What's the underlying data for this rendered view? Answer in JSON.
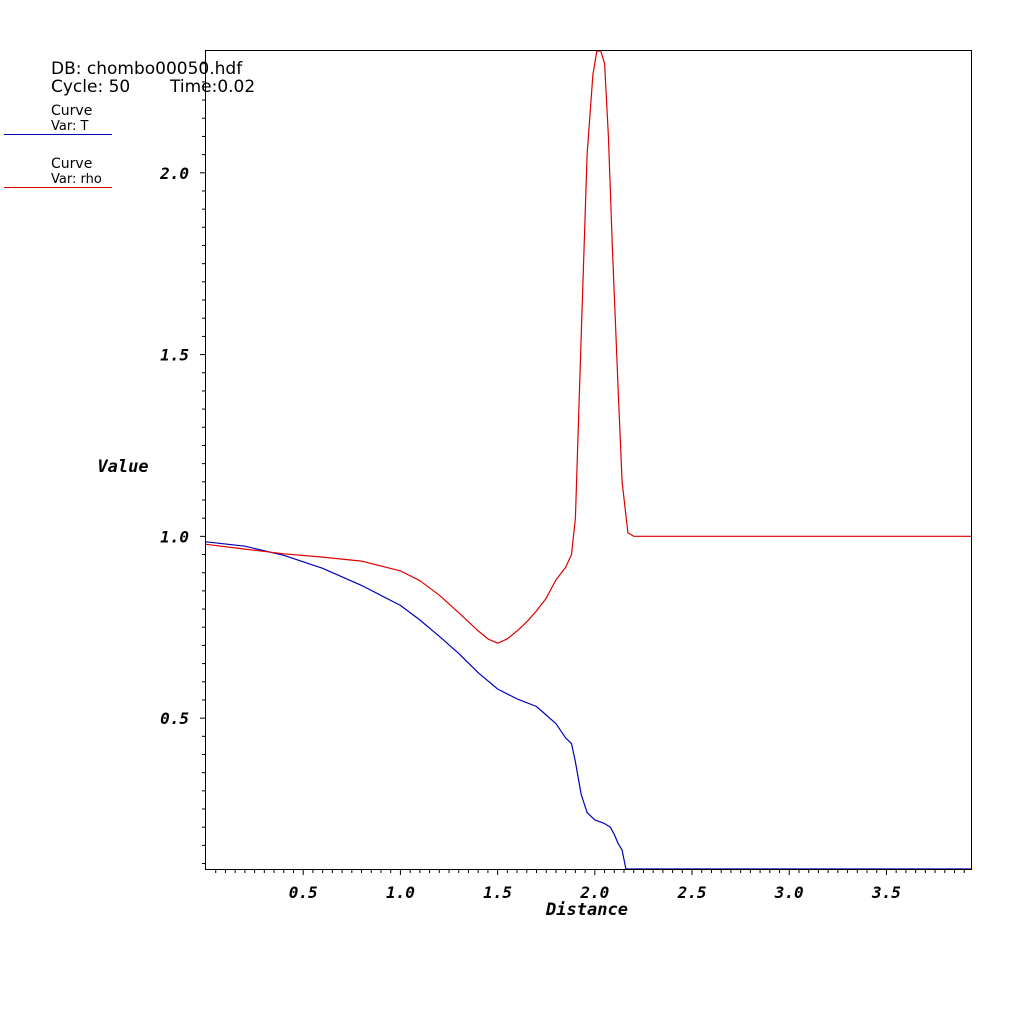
{
  "info": {
    "db": "DB: chombo00050.hdf",
    "cycle": "Cycle: 50",
    "time": "Time:0.02"
  },
  "legend": [
    {
      "name": "Curve",
      "var": "Var: T",
      "color": "#0000bb"
    },
    {
      "name": "Curve",
      "var": "Var: rho",
      "color": "#dd0000"
    }
  ],
  "chart_data": {
    "type": "line",
    "title": "",
    "xlabel": "Distance",
    "ylabel": "Value",
    "xlim": [
      0,
      3.94
    ],
    "ylim": [
      0.085,
      2.335
    ],
    "x_ticks": [
      "0.5",
      "1.0",
      "1.5",
      "2.0",
      "2.5",
      "3.0",
      "3.5"
    ],
    "y_ticks": [
      "0.5",
      "1.0",
      "1.5",
      "2.0"
    ],
    "grid": false,
    "legend_position": "top-left",
    "series": [
      {
        "name": "T",
        "color": "#0000bb",
        "x": [
          0,
          0.2,
          0.4,
          0.6,
          0.8,
          1.0,
          1.1,
          1.2,
          1.3,
          1.4,
          1.5,
          1.6,
          1.7,
          1.8,
          1.85,
          1.88,
          1.9,
          1.93,
          1.96,
          2.0,
          2.05,
          2.08,
          2.1,
          2.12,
          2.14,
          2.16,
          2.2,
          2.5,
          3.0,
          3.5,
          3.94
        ],
        "y": [
          0.985,
          0.973,
          0.948,
          0.912,
          0.865,
          0.81,
          0.77,
          0.725,
          0.678,
          0.625,
          0.58,
          0.553,
          0.532,
          0.485,
          0.445,
          0.43,
          0.38,
          0.29,
          0.24,
          0.22,
          0.21,
          0.2,
          0.18,
          0.155,
          0.137,
          0.085,
          0.085,
          0.085,
          0.085,
          0.085,
          0.085
        ]
      },
      {
        "name": "rho",
        "color": "#dd0000",
        "x": [
          0,
          0.2,
          0.4,
          0.6,
          0.8,
          1.0,
          1.1,
          1.2,
          1.3,
          1.4,
          1.45,
          1.5,
          1.55,
          1.6,
          1.65,
          1.7,
          1.75,
          1.8,
          1.85,
          1.88,
          1.9,
          1.93,
          1.96,
          1.99,
          2.01,
          2.03,
          2.05,
          2.07,
          2.09,
          2.12,
          2.14,
          2.17,
          2.2,
          2.5,
          3.0,
          3.5,
          3.94
        ],
        "y": [
          0.978,
          0.965,
          0.952,
          0.943,
          0.932,
          0.905,
          0.878,
          0.838,
          0.79,
          0.74,
          0.718,
          0.706,
          0.718,
          0.74,
          0.765,
          0.795,
          0.83,
          0.88,
          0.915,
          0.95,
          1.05,
          1.55,
          2.05,
          2.27,
          2.335,
          2.335,
          2.3,
          2.1,
          1.8,
          1.4,
          1.15,
          1.01,
          1.0,
          1.0,
          1.0,
          1.0,
          1.0
        ]
      }
    ]
  }
}
